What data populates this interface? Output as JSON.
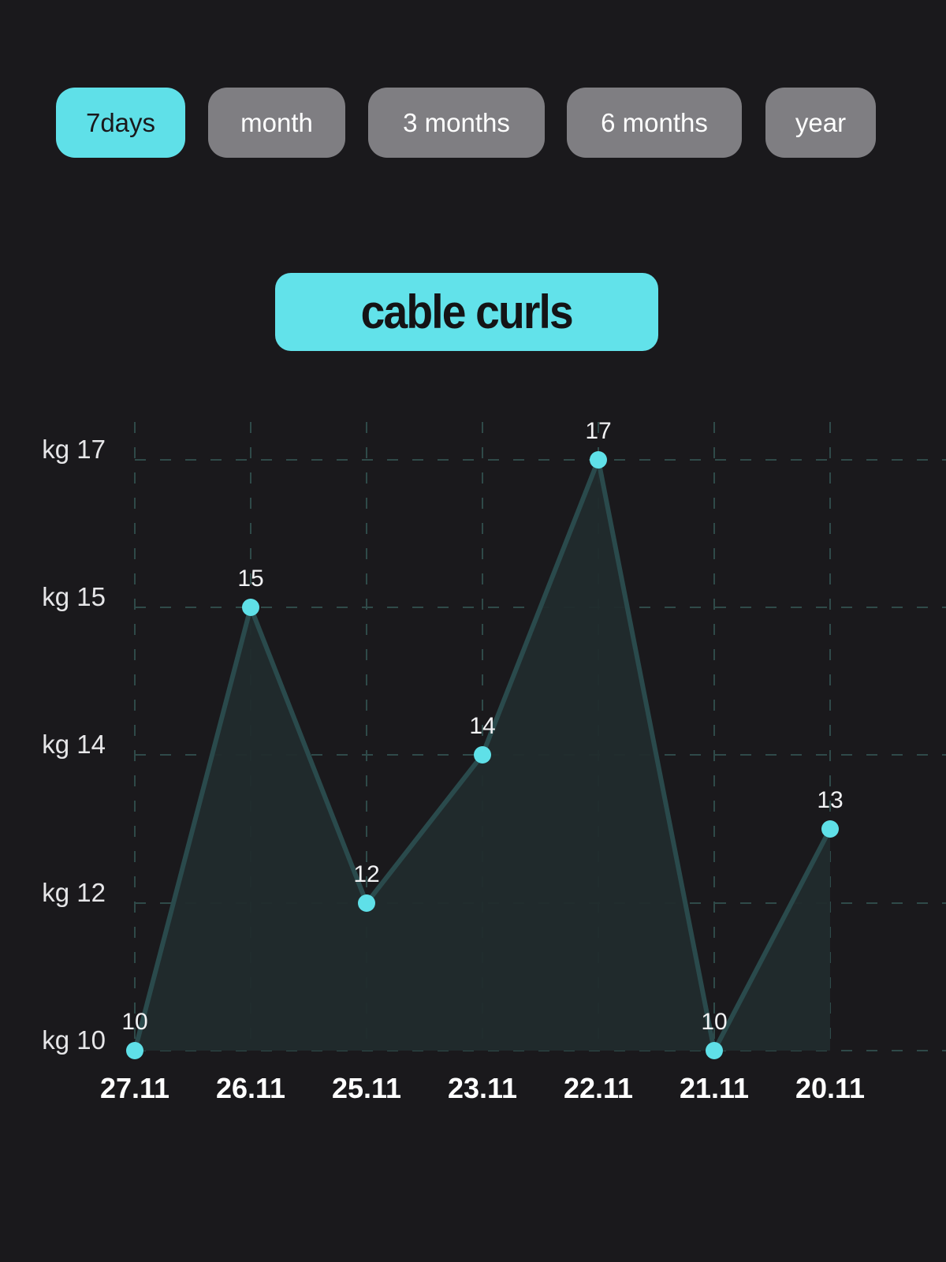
{
  "period_tabs": [
    {
      "label": "7days",
      "active": true
    },
    {
      "label": "month",
      "active": false
    },
    {
      "label": "3 months",
      "active": false
    },
    {
      "label": "6 months",
      "active": false
    },
    {
      "label": "year",
      "active": false
    }
  ],
  "exercise_title": "cable curls",
  "colors": {
    "background": "#1a191c",
    "accent": "#5fe0e8",
    "tab_inactive": "#7f7e82",
    "line": "#2a4a4c",
    "area_fill": "#212b2d",
    "grid": "#2f4a49"
  },
  "chart_data": {
    "type": "area",
    "categories": [
      "27.11",
      "26.11",
      "25.11",
      "23.11",
      "22.11",
      "21.11",
      "20.11"
    ],
    "series": [
      {
        "values": [
          10,
          15,
          12,
          14,
          17,
          10,
          13
        ]
      }
    ],
    "data_labels": [
      "10",
      "15",
      "12",
      "14",
      "17",
      "10",
      "13"
    ],
    "y_ticks": [
      {
        "value": 10,
        "label": "kg 10"
      },
      {
        "value": 12,
        "label": "kg 12"
      },
      {
        "value": 14,
        "label": "kg 14"
      },
      {
        "value": 15,
        "label": "kg 15"
      },
      {
        "value": 17,
        "label": "kg 17"
      }
    ],
    "grid": true,
    "title": "",
    "xlabel": "",
    "ylabel": ""
  }
}
